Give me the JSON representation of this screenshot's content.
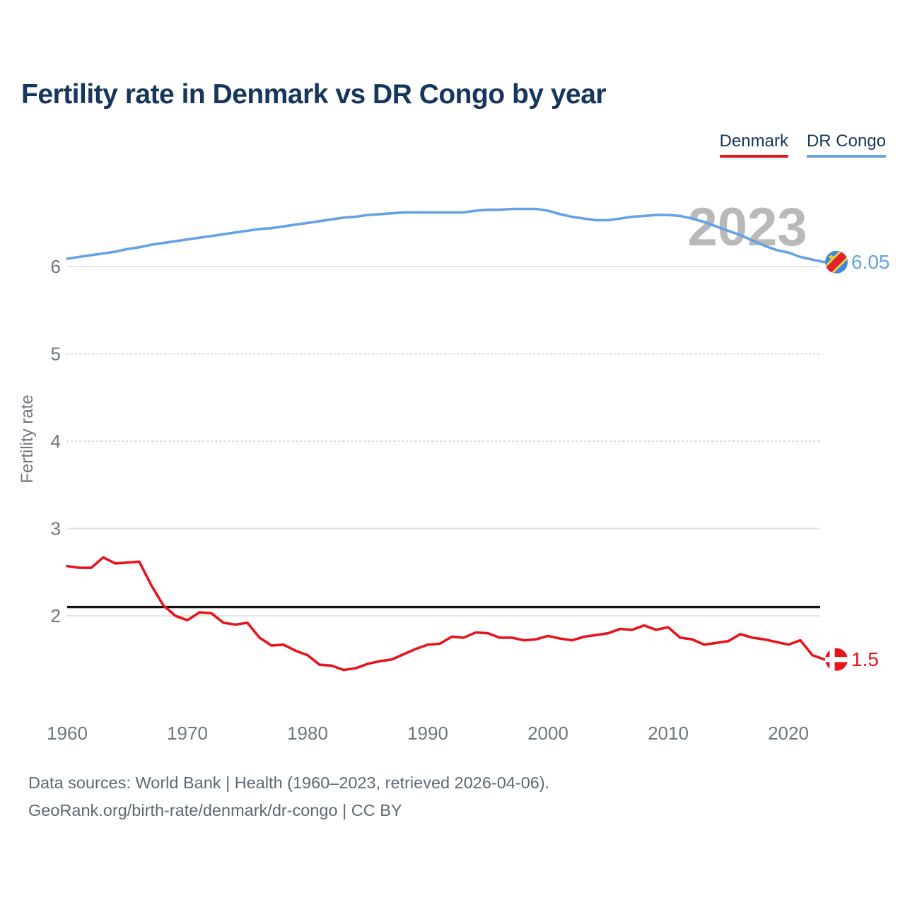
{
  "title": "Fertility rate in Denmark vs DR Congo by year",
  "watermark": "2023",
  "legend": [
    {
      "label": "Denmark",
      "color": "#e8141c"
    },
    {
      "label": "DR Congo",
      "color": "#64a2e4"
    }
  ],
  "y_axis": {
    "label": "Fertility rate",
    "ticks": [
      2,
      3,
      4,
      5,
      6
    ],
    "solid_gridlines": [
      2,
      3,
      6
    ]
  },
  "x_axis": {
    "ticks": [
      1960,
      1970,
      1980,
      1990,
      2000,
      2010,
      2020
    ]
  },
  "reference_line": {
    "value": 2.1,
    "color": "#141414"
  },
  "chart_data": {
    "type": "line",
    "title": "Fertility rate in Denmark vs DR Congo by year",
    "xlabel": "",
    "ylabel": "Fertility rate",
    "xlim": [
      1960,
      2023
    ],
    "ylim": [
      2,
      6
    ],
    "grid": "horizontal",
    "legend_position": "top-right",
    "x_years_start": 1960,
    "x_years_end": 2023,
    "series": [
      {
        "name": "Denmark",
        "color": "#e8141c",
        "end_label": "1.5",
        "flag": "denmark",
        "values": [
          2.57,
          2.55,
          2.55,
          2.67,
          2.6,
          2.61,
          2.62,
          2.35,
          2.12,
          2.0,
          1.95,
          2.04,
          2.03,
          1.92,
          1.9,
          1.92,
          1.75,
          1.66,
          1.67,
          1.6,
          1.55,
          1.44,
          1.43,
          1.38,
          1.4,
          1.45,
          1.48,
          1.5,
          1.56,
          1.62,
          1.67,
          1.68,
          1.76,
          1.75,
          1.81,
          1.8,
          1.75,
          1.75,
          1.72,
          1.73,
          1.77,
          1.74,
          1.72,
          1.76,
          1.78,
          1.8,
          1.85,
          1.84,
          1.89,
          1.84,
          1.87,
          1.75,
          1.73,
          1.67,
          1.69,
          1.71,
          1.79,
          1.75,
          1.73,
          1.7,
          1.67,
          1.72,
          1.55,
          1.5
        ]
      },
      {
        "name": "DR Congo",
        "color": "#64a2e4",
        "end_label": "6.05",
        "flag": "dr-congo",
        "values": [
          6.09,
          6.11,
          6.13,
          6.15,
          6.17,
          6.2,
          6.22,
          6.25,
          6.27,
          6.29,
          6.31,
          6.33,
          6.35,
          6.37,
          6.39,
          6.41,
          6.43,
          6.44,
          6.46,
          6.48,
          6.5,
          6.52,
          6.54,
          6.56,
          6.57,
          6.59,
          6.6,
          6.61,
          6.62,
          6.62,
          6.62,
          6.62,
          6.62,
          6.62,
          6.64,
          6.65,
          6.65,
          6.66,
          6.66,
          6.66,
          6.64,
          6.6,
          6.57,
          6.55,
          6.53,
          6.53,
          6.55,
          6.57,
          6.58,
          6.59,
          6.59,
          6.58,
          6.55,
          6.51,
          6.46,
          6.41,
          6.36,
          6.3,
          6.24,
          6.19,
          6.16,
          6.11,
          6.08,
          6.05
        ]
      }
    ]
  },
  "footer": {
    "line1": "Data sources: World Bank | Health (1960–2023, retrieved 2026-04-06).",
    "line2": "GeoRank.org/birth-rate/denmark/dr-congo | CC BY"
  },
  "colors": {
    "title": "#17365d",
    "tick_text": "#6e7781",
    "footer_text": "#5d6873",
    "watermark": "#b9b9b9",
    "grid_solid": "#e4e4e4",
    "grid_dotted": "#d8d8d8"
  }
}
